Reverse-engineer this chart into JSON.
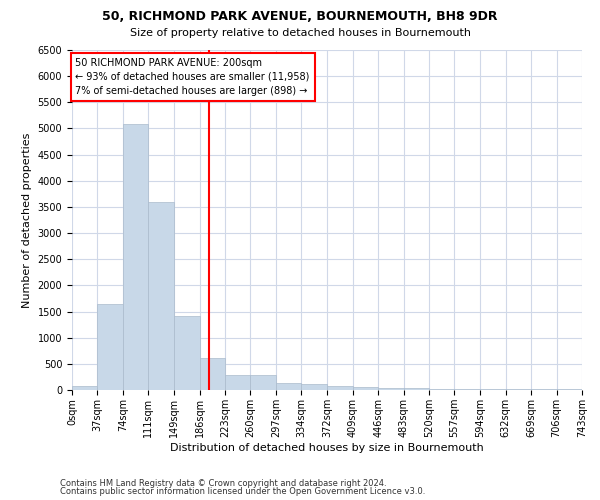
{
  "title_line1": "50, RICHMOND PARK AVENUE, BOURNEMOUTH, BH8 9DR",
  "title_line2": "Size of property relative to detached houses in Bournemouth",
  "xlabel": "Distribution of detached houses by size in Bournemouth",
  "ylabel": "Number of detached properties",
  "footnote1": "Contains HM Land Registry data © Crown copyright and database right 2024.",
  "footnote2": "Contains public sector information licensed under the Open Government Licence v3.0.",
  "annotation_line1": "50 RICHMOND PARK AVENUE: 200sqm",
  "annotation_line2": "← 93% of detached houses are smaller (11,958)",
  "annotation_line3": "7% of semi-detached houses are larger (898) →",
  "bar_color": "#c8d8e8",
  "bar_edgecolor": "#aabbcc",
  "vline_color": "red",
  "vline_x": 200,
  "bin_edges": [
    0,
    37,
    74,
    111,
    149,
    186,
    223,
    260,
    297,
    334,
    372,
    409,
    446,
    483,
    520,
    557,
    594,
    632,
    669,
    706,
    743
  ],
  "bin_counts": [
    75,
    1650,
    5080,
    3600,
    1410,
    620,
    290,
    280,
    140,
    110,
    80,
    50,
    40,
    30,
    20,
    20,
    10,
    10,
    10,
    10
  ],
  "tick_labels": [
    "0sqm",
    "37sqm",
    "74sqm",
    "111sqm",
    "149sqm",
    "186sqm",
    "223sqm",
    "260sqm",
    "297sqm",
    "334sqm",
    "372sqm",
    "409sqm",
    "446sqm",
    "483sqm",
    "520sqm",
    "557sqm",
    "594sqm",
    "632sqm",
    "669sqm",
    "706sqm",
    "743sqm"
  ],
  "ylim": [
    0,
    6500
  ],
  "xlim": [
    0,
    743
  ],
  "background_color": "#ffffff",
  "grid_color": "#d0d8e8",
  "title_fontsize": 9,
  "subtitle_fontsize": 8,
  "xlabel_fontsize": 8,
  "ylabel_fontsize": 8,
  "tick_fontsize": 7,
  "annotation_fontsize": 7,
  "footnote_fontsize": 6
}
